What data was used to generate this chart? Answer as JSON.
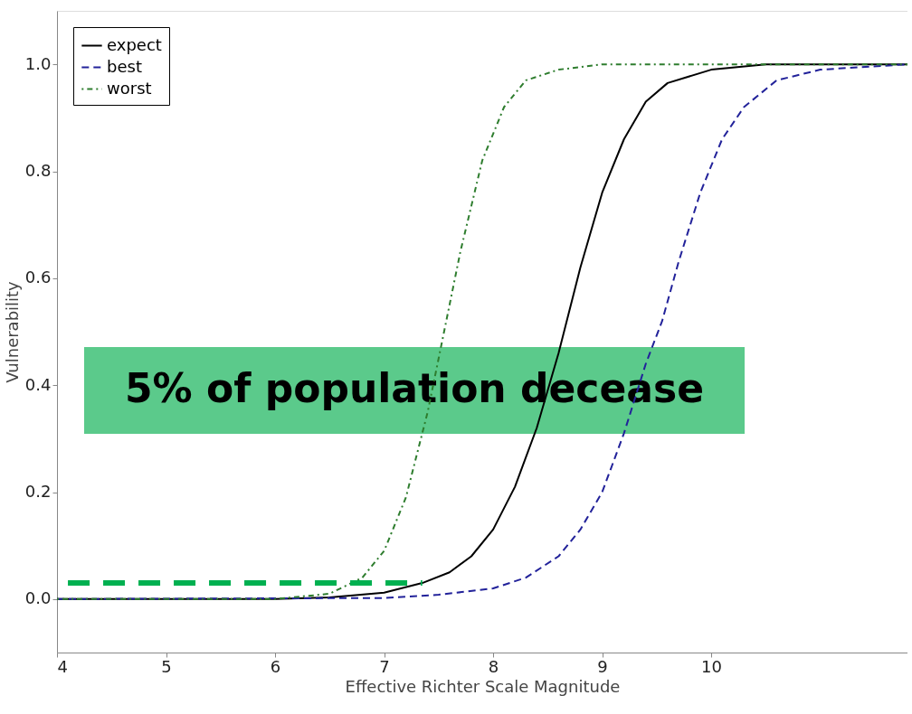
{
  "chart_data": {
    "type": "line",
    "xlabel": "Effective Richter Scale Magnitude",
    "ylabel": "Vulnerability",
    "xlim": [
      4,
      11.8
    ],
    "ylim": [
      -0.1,
      1.1
    ],
    "xticks": [
      4,
      5,
      6,
      7,
      8,
      9,
      10
    ],
    "yticks": [
      {
        "value": 0,
        "label": "0.0"
      },
      0.2,
      0.4,
      0.6,
      0.8,
      {
        "value": 1,
        "label": "1.0"
      }
    ],
    "grid": false,
    "legend": "top left",
    "marker": "none",
    "annotations": [
      "5% of population decease"
    ],
    "series": [
      {
        "name": "expect",
        "color": "#000000",
        "line_style": "solid",
        "x": [
          4.0,
          6.0,
          6.5,
          7.0,
          7.35,
          7.6,
          7.8,
          8.0,
          8.2,
          8.4,
          8.6,
          8.8,
          9.0,
          9.2,
          9.4,
          9.6,
          10.0,
          10.5,
          11.8
        ],
        "values": [
          0.0,
          0.0,
          0.003,
          0.012,
          0.03,
          0.05,
          0.08,
          0.13,
          0.21,
          0.32,
          0.46,
          0.62,
          0.76,
          0.86,
          0.93,
          0.965,
          0.99,
          1.0,
          1.0
        ]
      },
      {
        "name": "best",
        "color": "#22229a",
        "line_style": "dashed",
        "x": [
          4.0,
          7.0,
          7.5,
          8.0,
          8.3,
          8.6,
          8.8,
          9.0,
          9.2,
          9.4,
          9.55,
          9.7,
          9.9,
          10.1,
          10.3,
          10.6,
          11.0,
          11.8
        ],
        "values": [
          0.0,
          0.002,
          0.008,
          0.02,
          0.04,
          0.08,
          0.13,
          0.2,
          0.31,
          0.44,
          0.52,
          0.63,
          0.76,
          0.86,
          0.92,
          0.97,
          0.99,
          1.0
        ]
      },
      {
        "name": "worst",
        "color": "#2e7d2e",
        "line_style": "dotted",
        "x": [
          4.0,
          6.0,
          6.5,
          6.8,
          7.0,
          7.2,
          7.4,
          7.55,
          7.7,
          7.9,
          8.1,
          8.3,
          8.6,
          9.0,
          11.8
        ],
        "values": [
          0.0,
          0.0,
          0.01,
          0.04,
          0.09,
          0.19,
          0.35,
          0.5,
          0.65,
          0.82,
          0.92,
          0.97,
          0.99,
          1.0,
          1.0
        ]
      },
      {
        "color": "#00b050",
        "line_style": "dashed",
        "x": [
          4.1,
          7.35
        ],
        "values": [
          0.03,
          0.03
        ]
      }
    ]
  }
}
